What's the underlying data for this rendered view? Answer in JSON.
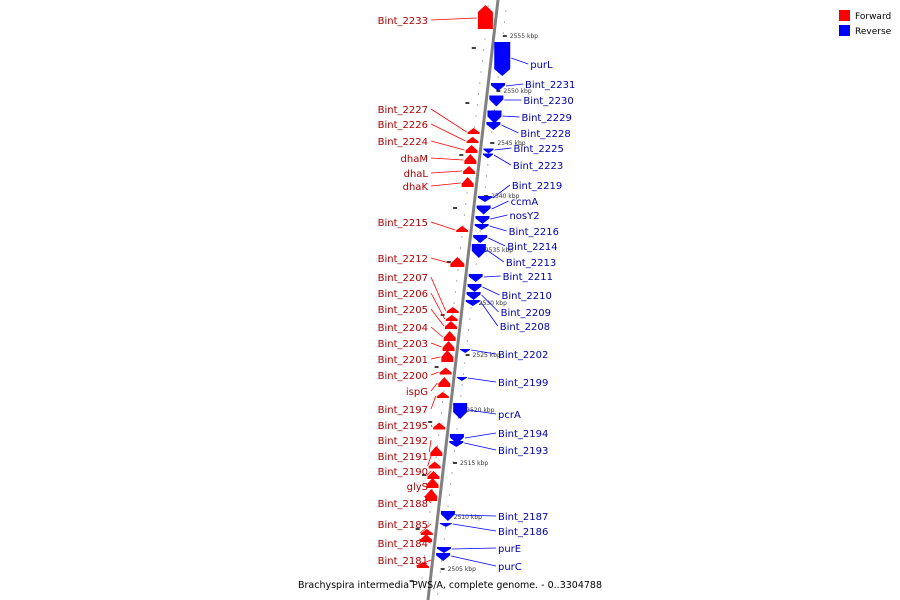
{
  "colors": {
    "forward": "#ff0000",
    "reverse": "#0000ff",
    "axis": "#808080",
    "forward_label": "#aa0000",
    "reverse_label": "#0000aa"
  },
  "legend": {
    "forward": "Forward",
    "reverse": "Reverse"
  },
  "caption": "Brachyspira intermedia PWS/A, complete genome. - 0..3304788",
  "ticks": [
    "2555 kbp",
    "2550 kbp",
    "2545 kbp",
    "2540 kbp",
    "2535 kbp",
    "2530 kbp",
    "2525 kbp",
    "2520 kbp",
    "2515 kbp",
    "2510 kbp",
    "2505 kbp"
  ],
  "forward_genes": [
    "Bint_2233",
    "Bint_2227",
    "Bint_2226",
    "Bint_2224",
    "dhaM",
    "dhaL",
    "dhaK",
    "Bint_2215",
    "Bint_2212",
    "Bint_2207",
    "Bint_2206",
    "Bint_2205",
    "Bint_2204",
    "Bint_2203",
    "Bint_2201",
    "Bint_2200",
    "ispG",
    "Bint_2197",
    "Bint_2195",
    "Bint_2192",
    "Bint_2191",
    "Bint_2190",
    "glyS",
    "Bint_2188",
    "Bint_2185",
    "Bint_2184",
    "Bint_2181"
  ],
  "reverse_genes": [
    "purL",
    "Bint_2231",
    "Bint_2230",
    "Bint_2229",
    "Bint_2228",
    "Bint_2225",
    "Bint_2223",
    "Bint_2219",
    "ccmA",
    "nosY2",
    "Bint_2216",
    "Bint_2214",
    "Bint_2213",
    "Bint_2211",
    "Bint_2210",
    "Bint_2209",
    "Bint_2208",
    "Bint_2202",
    "Bint_2199",
    "pcrA",
    "Bint_2194",
    "Bint_2193",
    "Bint_2187",
    "Bint_2186",
    "purE",
    "purC"
  ]
}
